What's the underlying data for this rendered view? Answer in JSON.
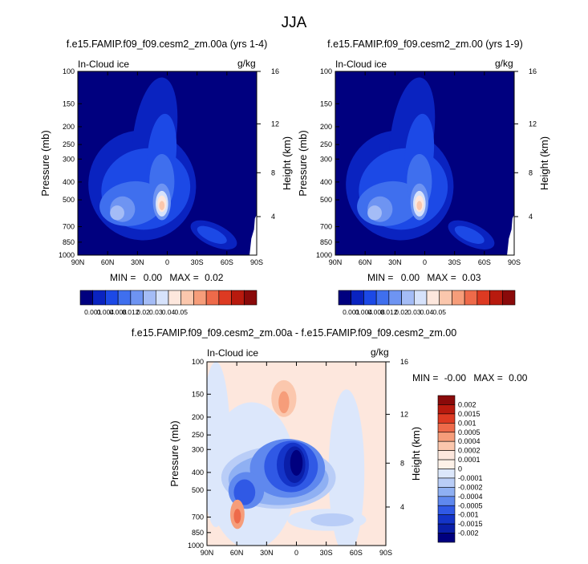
{
  "page": {
    "title": "JJA"
  },
  "chart_data": [
    {
      "type": "heatmap",
      "title": "f.e15.FAMIP.f09_f09.cesm2_zm.00a (yrs 1-4)",
      "left_string": "In-Cloud ice",
      "units": "g/kg",
      "ylabel": "Pressure (mb)",
      "y2label": "Height (km)",
      "xticks": [
        "90N",
        "60N",
        "30N",
        "0",
        "30S",
        "60S",
        "90S"
      ],
      "yticks": [
        "100",
        "150",
        "200",
        "250",
        "300",
        "400",
        "500",
        "700",
        "850",
        "1000"
      ],
      "y2ticks": [
        "16",
        "12",
        "8",
        "4"
      ],
      "ylim": [
        1000,
        100
      ],
      "min_label": "MIN =",
      "min_value": "0.00",
      "max_label": "MAX =",
      "max_value": "0.02",
      "colorbar_levels": [
        "0.001",
        "0.004",
        "0.008",
        "0.012",
        "0.02",
        "0.03",
        "0.04",
        "0.05"
      ],
      "colors": [
        "#00007f",
        "#0a23c0",
        "#1c49e6",
        "#3f6fee",
        "#6e94f2",
        "#a4bcf6",
        "#d6e2fb",
        "#fde7dd",
        "#fbc7ad",
        "#f69d7a",
        "#ee6a4a",
        "#dd3a22",
        "#b81a0e",
        "#8a0a0a"
      ]
    },
    {
      "type": "heatmap",
      "title": "f.e15.FAMIP.f09_f09.cesm2_zm.00 (yrs 1-9)",
      "left_string": "In-Cloud ice",
      "units": "g/kg",
      "ylabel": "Pressure (mb)",
      "y2label": "Height (km)",
      "xticks": [
        "90N",
        "60N",
        "30N",
        "0",
        "30S",
        "60S",
        "90S"
      ],
      "yticks": [
        "100",
        "150",
        "200",
        "250",
        "300",
        "400",
        "500",
        "700",
        "850",
        "1000"
      ],
      "y2ticks": [
        "16",
        "12",
        "8",
        "4"
      ],
      "ylim": [
        1000,
        100
      ],
      "min_label": "MIN =",
      "min_value": "0.00",
      "max_label": "MAX =",
      "max_value": "0.03",
      "colorbar_levels": [
        "0.001",
        "0.004",
        "0.008",
        "0.012",
        "0.02",
        "0.03",
        "0.04",
        "0.05"
      ]
    },
    {
      "type": "heatmap",
      "title": "f.e15.FAMIP.f09_f09.cesm2_zm.00a - f.e15.FAMIP.f09_f09.cesm2_zm.00",
      "left_string": "In-Cloud ice",
      "units": "g/kg",
      "ylabel": "Pressure (mb)",
      "y2label": "Height (km)",
      "xticks": [
        "90N",
        "60N",
        "30N",
        "0",
        "30S",
        "60S",
        "90S"
      ],
      "yticks": [
        "100",
        "150",
        "200",
        "250",
        "300",
        "400",
        "500",
        "700",
        "850",
        "1000"
      ],
      "y2ticks": [
        "16",
        "12",
        "8",
        "4"
      ],
      "ylim": [
        1000,
        100
      ],
      "min_label": "MIN =",
      "min_value": "-0.00",
      "max_label": "MAX =",
      "max_value": "0.00",
      "colorbar_levels": [
        "0.002",
        "0.0015",
        "0.001",
        "0.0005",
        "0.0004",
        "0.0002",
        "0.0001",
        "0",
        "-0.0001",
        "-0.0002",
        "-0.0004",
        "-0.0005",
        "-0.001",
        "-0.0015",
        "-0.002"
      ],
      "colors": [
        "#8a0a0a",
        "#b81a0e",
        "#dd3a22",
        "#ee6a4a",
        "#f69d7a",
        "#fbc7ad",
        "#fde7dd",
        "#fdf1e8",
        "#dce7fb",
        "#b9cdf7",
        "#8fb0f3",
        "#5f88ee",
        "#3059e5",
        "#1434c8",
        "#0a1ea8",
        "#00007f"
      ]
    }
  ]
}
